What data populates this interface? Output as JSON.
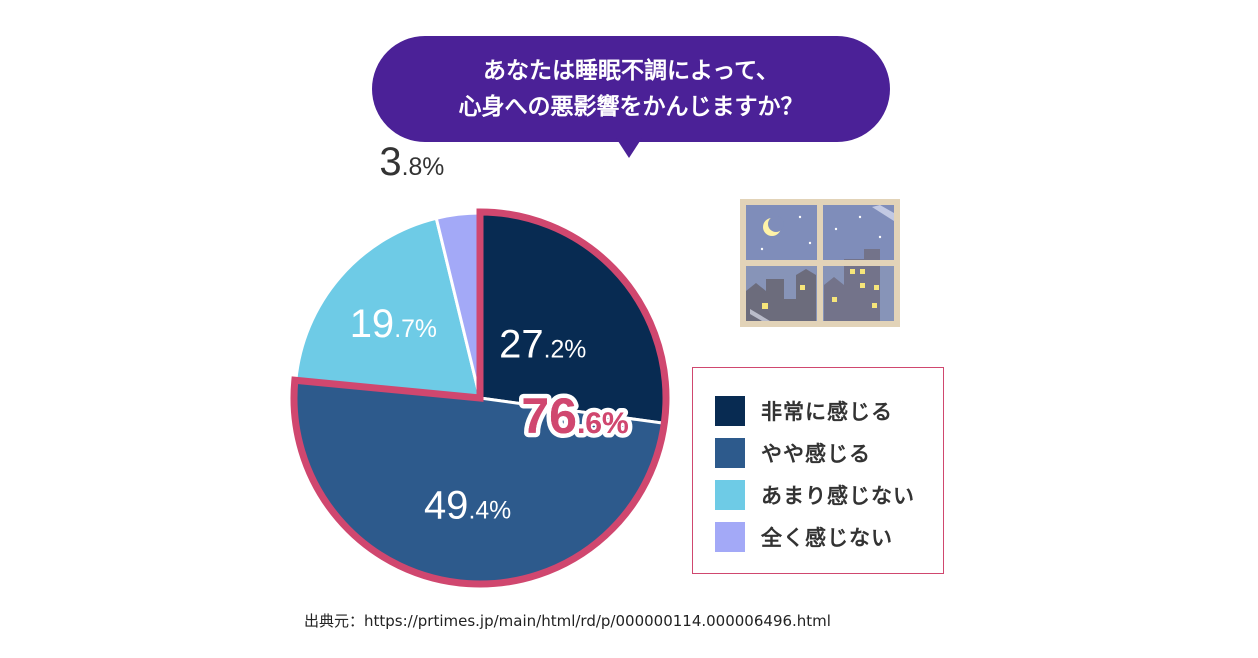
{
  "question": {
    "line1": "あなたは睡眠不調によって、",
    "line2": "心身への悪影響をかんじますか？"
  },
  "chart_data": {
    "type": "pie",
    "categories": [
      "非常に感じる",
      "やや感じる",
      "あまり感じない",
      "全く感じない"
    ],
    "values": [
      27.2,
      49.4,
      19.7,
      3.8
    ],
    "colors": [
      "#082b52",
      "#2d5a8c",
      "#6ecbe6",
      "#a3a9f7"
    ],
    "value_labels": [
      {
        "main": "27",
        "small": ".2%"
      },
      {
        "main": "49",
        "small": ".4%"
      },
      {
        "main": "19",
        "small": ".7%"
      },
      {
        "main": "3",
        "small": ".8%"
      }
    ],
    "highlight": {
      "main": "76",
      "small": ".6%",
      "color": "#d0476f"
    }
  },
  "legend": {
    "items": [
      {
        "label": "非常に感じる",
        "color": "#082b52"
      },
      {
        "label": "やや感じる",
        "color": "#2d5a8c"
      },
      {
        "label": "あまり感じない",
        "color": "#6ecbe6"
      },
      {
        "label": "全く感じない",
        "color": "#a3a9f7"
      }
    ]
  },
  "illustration": {
    "icon": "night-window-icon"
  },
  "source": "出典元：https://prtimes.jp/main/html/rd/p/000000114.000006496.html"
}
